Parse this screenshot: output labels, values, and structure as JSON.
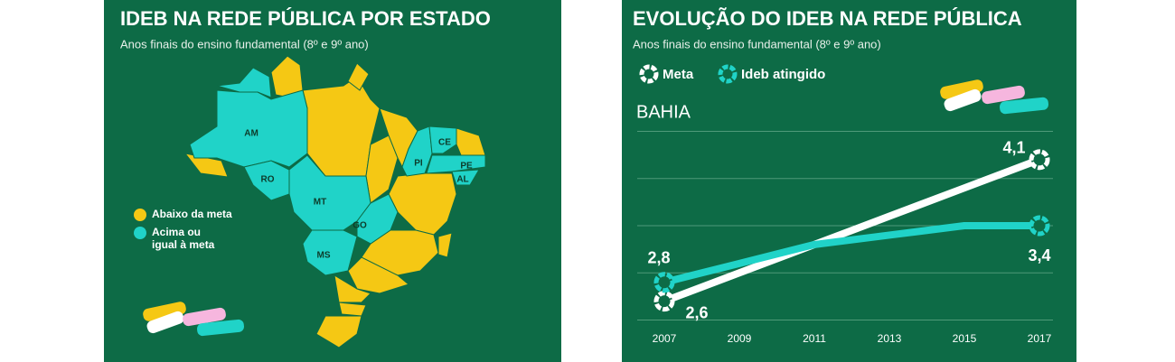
{
  "map": {
    "title": "IDEB NA REDE PÚBLICA POR ESTADO",
    "subtitle": "Anos finais do ensino fundamental (8º e 9º ano)",
    "legend": [
      {
        "label": [
          "Abaixo da meta"
        ],
        "color": "#f5c814"
      },
      {
        "label": [
          "Acima ou",
          "igual à meta"
        ],
        "color": "#20d3c8"
      }
    ],
    "states": [
      {
        "label": "AM",
        "color": "#20d3c8"
      },
      {
        "label": "RO",
        "color": "#20d3c8"
      },
      {
        "label": "MT",
        "color": "#20d3c8"
      },
      {
        "label": "GO",
        "color": "#20d3c8"
      },
      {
        "label": "MS",
        "color": "#20d3c8"
      },
      {
        "label": "PI",
        "color": "#20d3c8"
      },
      {
        "label": "CE",
        "color": "#20d3c8"
      },
      {
        "label": "PE",
        "color": "#20d3c8"
      },
      {
        "label": "AL",
        "color": "#20d3c8"
      }
    ]
  },
  "chart_data": {
    "type": "line",
    "title": "EVOLUÇÃO DO IDEB NA REDE PÚBLICA",
    "subtitle": "Anos finais do ensino fundamental (8º e 9º ano)",
    "region": "BAHIA",
    "categories": [
      "2007",
      "2009",
      "2011",
      "2013",
      "2015",
      "2017"
    ],
    "series": [
      {
        "name": "Meta",
        "color": "#ffffff",
        "values": [
          2.6,
          2.9,
          3.2,
          3.5,
          3.8,
          4.1
        ],
        "value_labels": [
          "2,6",
          null,
          null,
          null,
          null,
          "4,1"
        ]
      },
      {
        "name": "Ideb atingido",
        "color": "#20d3c8",
        "values": [
          2.8,
          3.0,
          3.2,
          3.3,
          3.4,
          3.4
        ],
        "value_labels": [
          "2,8",
          null,
          null,
          null,
          null,
          "3,4"
        ]
      }
    ],
    "ylim": [
      2.3,
      4.5
    ],
    "yticks": [
      2.4,
      2.9,
      3.4,
      3.9,
      4.4
    ],
    "grid": true
  }
}
